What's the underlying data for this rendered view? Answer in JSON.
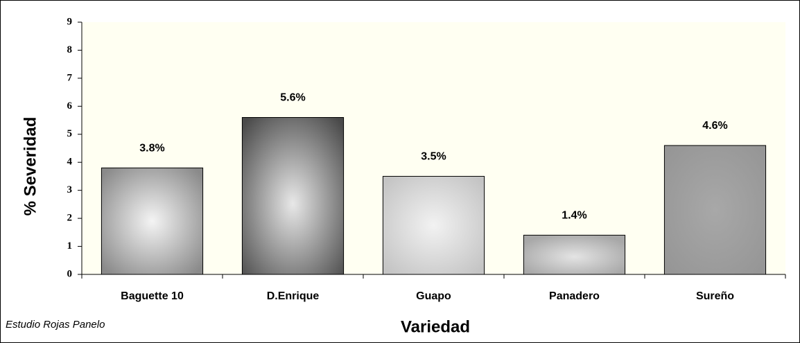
{
  "chart_data": {
    "type": "bar",
    "categories": [
      "Baguette 10",
      "D.Enrique",
      "Guapo",
      "Panadero",
      "Sureño"
    ],
    "values": [
      3.8,
      5.6,
      3.5,
      1.4,
      4.6
    ],
    "value_labels": [
      "3.8%",
      "5.6%",
      "3.5%",
      "1.4%",
      "4.6%"
    ],
    "ylim": [
      0,
      9
    ],
    "yticks": [
      0,
      1,
      2,
      3,
      4,
      5,
      6,
      7,
      8,
      9
    ],
    "x_label": "Variedad",
    "y_label": "% Severidad",
    "annotation": "Estudio Rojas Panelo"
  }
}
